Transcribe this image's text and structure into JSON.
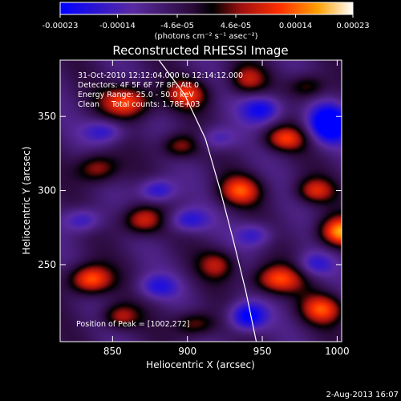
{
  "colorbar": {
    "tick_labels": [
      "-0.00023",
      "-0.00014",
      "-4.6e-05",
      "4.6e-05",
      "0.00014",
      "0.00023"
    ],
    "unit_label": "(photons cm⁻² s⁻¹ asec⁻²)",
    "range": [
      -0.00023,
      0.00023
    ]
  },
  "chart_data": {
    "type": "heatmap",
    "title": "Reconstructed RHESSI Image",
    "xlabel": "Heliocentric X (arcsec)",
    "ylabel": "Heliocentric Y (arcsec)",
    "xlim": [
      815,
      1003
    ],
    "ylim": [
      198,
      388
    ],
    "x_ticks": [
      850,
      900,
      950,
      1000
    ],
    "y_ticks": [
      250,
      300,
      350
    ],
    "annotations": [
      "31-Oct-2010 12:12:04.000 to 12:14:12.000",
      "Detectors: 4F 5F 6F 7F 8F, Att 0",
      "Energy Range: 25.0 - 50.0 keV",
      "Clean     Total counts: 1.78E+03"
    ],
    "peak_label": "Position of Peak = [1002,272]",
    "limb_curve": [
      {
        "x": 881,
        "y": 388
      },
      {
        "x": 898,
        "y": 365
      },
      {
        "x": 912,
        "y": 335
      },
      {
        "x": 922,
        "y": 300
      },
      {
        "x": 931,
        "y": 265
      },
      {
        "x": 939,
        "y": 232
      },
      {
        "x": 946,
        "y": 198
      }
    ],
    "blobs": [
      {
        "x": 1002,
        "y": 272,
        "v": 0.000228,
        "sx": 10,
        "sy": 7
      },
      {
        "x": 835,
        "y": 240,
        "v": 0.00021,
        "sx": 10,
        "sy": 7
      },
      {
        "x": 860,
        "y": 360,
        "v": 0.00019,
        "sx": 12,
        "sy": 8
      },
      {
        "x": 900,
        "y": 365,
        "v": 0.00015,
        "sx": 10,
        "sy": 7
      },
      {
        "x": 940,
        "y": 375,
        "v": 0.00012,
        "sx": 9,
        "sy": 7
      },
      {
        "x": 965,
        "y": 335,
        "v": 0.00016,
        "sx": 10,
        "sy": 6
      },
      {
        "x": 840,
        "y": 315,
        "v": 0.00014,
        "sx": 10,
        "sy": 7
      },
      {
        "x": 895,
        "y": 330,
        "v": 0.00013,
        "sx": 9,
        "sy": 6
      },
      {
        "x": 935,
        "y": 300,
        "v": 0.00017,
        "sx": 10,
        "sy": 7
      },
      {
        "x": 985,
        "y": 300,
        "v": 0.00014,
        "sx": 9,
        "sy": 6
      },
      {
        "x": 870,
        "y": 280,
        "v": 0.00016,
        "sx": 10,
        "sy": 7
      },
      {
        "x": 920,
        "y": 250,
        "v": 0.00012,
        "sx": 9,
        "sy": 7
      },
      {
        "x": 960,
        "y": 240,
        "v": 0.00018,
        "sx": 12,
        "sy": 7
      },
      {
        "x": 855,
        "y": 215,
        "v": 0.00013,
        "sx": 9,
        "sy": 6
      },
      {
        "x": 905,
        "y": 210,
        "v": 0.00012,
        "sx": 10,
        "sy": 6
      },
      {
        "x": 990,
        "y": 220,
        "v": 0.00017,
        "sx": 10,
        "sy": 7
      },
      {
        "x": 980,
        "y": 370,
        "v": 0.00011,
        "sx": 9,
        "sy": 6
      },
      {
        "x": 830,
        "y": 280,
        "v": -0.00012,
        "sx": 9,
        "sy": 6
      },
      {
        "x": 880,
        "y": 300,
        "v": -0.00014,
        "sx": 9,
        "sy": 6
      },
      {
        "x": 950,
        "y": 355,
        "v": -0.00016,
        "sx": 10,
        "sy": 7
      },
      {
        "x": 995,
        "y": 345,
        "v": -0.00023,
        "sx": 10,
        "sy": 9
      },
      {
        "x": 900,
        "y": 280,
        "v": -0.00013,
        "sx": 10,
        "sy": 6
      },
      {
        "x": 945,
        "y": 270,
        "v": -0.00011,
        "sx": 9,
        "sy": 6
      },
      {
        "x": 940,
        "y": 215,
        "v": -0.00019,
        "sx": 9,
        "sy": 7
      },
      {
        "x": 880,
        "y": 235,
        "v": -0.00011,
        "sx": 10,
        "sy": 6
      },
      {
        "x": 985,
        "y": 250,
        "v": -0.0001,
        "sx": 9,
        "sy": 6
      },
      {
        "x": 920,
        "y": 335,
        "v": -0.0001,
        "sx": 9,
        "sy": 6
      },
      {
        "x": 845,
        "y": 340,
        "v": -0.00012,
        "sx": 10,
        "sy": 6
      }
    ]
  },
  "footer": {
    "date": "2-Aug-2013 16:07"
  }
}
